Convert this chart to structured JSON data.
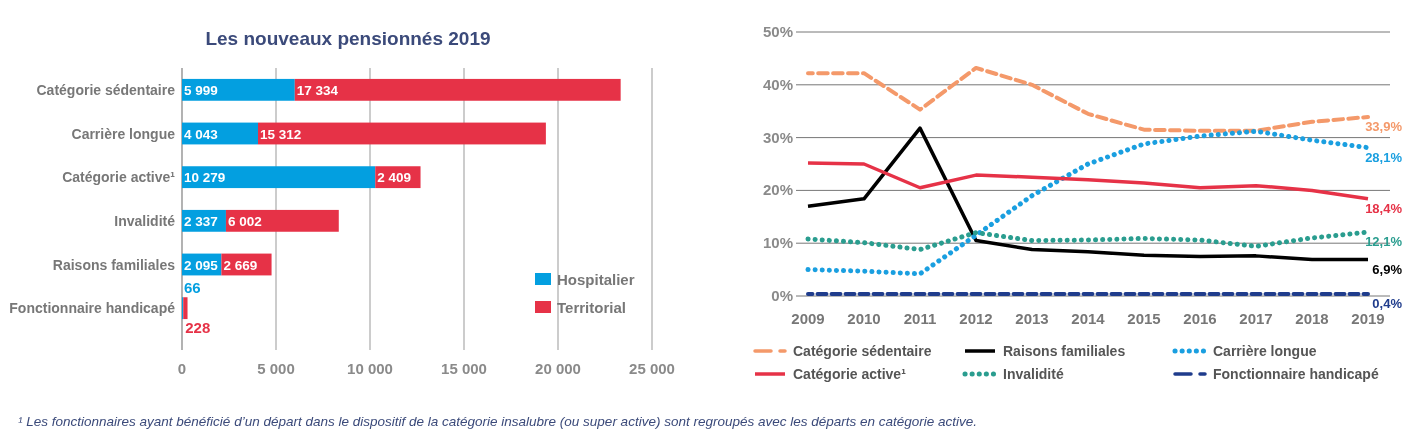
{
  "chart_data": [
    {
      "type": "bar",
      "orientation": "horizontal",
      "stacked": true,
      "title": "Les nouveaux pensionnés 2019",
      "categories": [
        "Catégorie sédentaire",
        "Carrière longue",
        "Catégorie active¹",
        "Invalidité",
        "Raisons familiales",
        "Fonctionnaire handicapé"
      ],
      "series": [
        {
          "name": "Hospitalier",
          "color": "#039fe0",
          "values": [
            5999,
            4043,
            10279,
            2337,
            2095,
            66
          ],
          "value_labels": [
            "5 999",
            "4 043",
            "10 279",
            "2 337",
            "2 095",
            "66"
          ]
        },
        {
          "name": "Territorial",
          "color": "#e63247",
          "values": [
            17334,
            15312,
            2409,
            6002,
            2669,
            228
          ],
          "value_labels": [
            "17 334",
            "15 312",
            "2 409",
            "6 002",
            "2 669",
            "228"
          ]
        }
      ],
      "xlim": [
        0,
        25000
      ],
      "xticks": [
        0,
        {
          "value": 5000,
          "label": "5 000"
        },
        {
          "value": 10000,
          "label": "10 000"
        },
        {
          "value": 15000,
          "label": "15 000"
        },
        {
          "value": 20000,
          "label": "20 000"
        },
        {
          "value": 25000,
          "label": "25 000"
        }
      ],
      "grid": "x",
      "legend": "bottom right",
      "annotations": [
        "¹ Les fonctionnaires ayant bénéficié d’un départ dans le dispositif de la catégorie insalubre (ou super active) sont regroupés avec les départs en catégorie active."
      ]
    },
    {
      "type": "line",
      "categories": [
        "2009",
        "2010",
        "2011",
        "2012",
        "2013",
        "2014",
        "2015",
        "2016",
        "2017",
        "2018",
        "2019"
      ],
      "series": [
        {
          "name": "Catégorie sédentaire",
          "color": "#f4996a",
          "line_style": "dashed",
          "values": [
            42.2,
            42.2,
            35.3,
            43.2,
            40,
            34.5,
            31.5,
            31.3,
            31.3,
            33,
            33.9
          ]
        },
        {
          "name": "Raisons familiales",
          "color": "#000000",
          "line_style": "solid",
          "values": [
            17,
            18.4,
            31.8,
            10.5,
            8.8,
            8.4,
            7.7,
            7.5,
            7.6,
            6.9,
            6.9
          ]
        },
        {
          "name": "Carrière longue",
          "color": "#1a9fe0",
          "line_style": "dotted",
          "values": [
            5,
            4.7,
            4.2,
            11.5,
            19,
            25,
            28.8,
            30.3,
            31.2,
            29.5,
            28.1
          ]
        },
        {
          "name": "Catégorie active¹",
          "color": "#e63247",
          "line_style": "solid",
          "values": [
            25.2,
            25,
            20.5,
            22.9,
            22.5,
            22,
            21.4,
            20.5,
            20.9,
            20,
            18.4
          ]
        },
        {
          "name": "Invalidité",
          "color": "#2a9d8f",
          "line_style": "dotted",
          "values": [
            10.8,
            10.1,
            8.8,
            12,
            10.5,
            10.6,
            10.9,
            10.6,
            9.4,
            11,
            12.1
          ]
        },
        {
          "name": "Fonctionnaire handicapé",
          "color": "#1f3c8c",
          "line_style": "dashed",
          "values": [
            0.4,
            0.4,
            0.4,
            0.4,
            0.4,
            0.4,
            0.4,
            0.4,
            0.4,
            0.4,
            0.4
          ]
        }
      ],
      "ylim": [
        0,
        50
      ],
      "yticks": [
        {
          "value": 0,
          "label": "0%"
        },
        {
          "value": 10,
          "label": "10%"
        },
        {
          "value": 20,
          "label": "20%"
        },
        {
          "value": 30,
          "label": "30%"
        },
        {
          "value": 40,
          "label": "40%"
        },
        {
          "value": 50,
          "label": "50%"
        }
      ],
      "grid": "y",
      "legend": "bottom",
      "annotations": [
        {
          "text": "33,9%",
          "x": "2019",
          "y": 33.9
        },
        {
          "text": "28,1%",
          "x": "2019",
          "y": 28.1
        },
        {
          "text": "18,4%",
          "x": "2019",
          "y": 18.4
        },
        {
          "text": "12,1%",
          "x": "2019",
          "y": 12.1
        },
        {
          "text": "6,9%",
          "x": "2019",
          "y": 6.9
        },
        {
          "text": "0,4%",
          "x": "2019",
          "y": 0.4
        }
      ]
    }
  ]
}
